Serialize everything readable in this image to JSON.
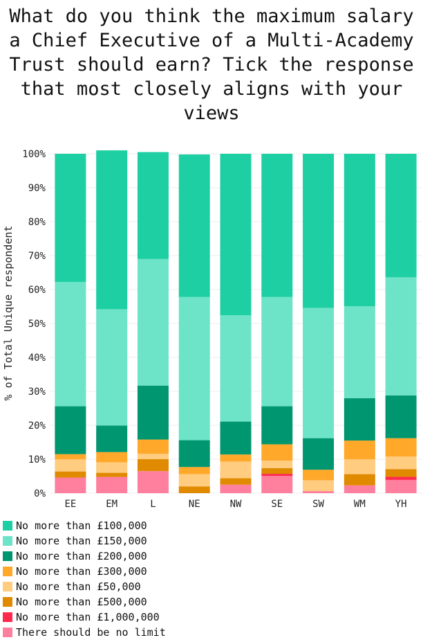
{
  "chart_data": {
    "type": "bar",
    "stacked": true,
    "title": "What do you think the maximum salary a Chief Executive of a Multi-Academy Trust should earn? Tick the response that most closely aligns with your views",
    "xlabel": "",
    "ylabel": "% of Total Unique respondent",
    "ylim": [
      0,
      100
    ],
    "yticks": [
      "0%",
      "10%",
      "20%",
      "30%",
      "40%",
      "50%",
      "60%",
      "70%",
      "80%",
      "90%",
      "100%"
    ],
    "categories": [
      "EE",
      "EM",
      "L",
      "NE",
      "NW",
      "SE",
      "SW",
      "WM",
      "YH"
    ],
    "stack_order_bottom_to_top": [
      "There should be no limit",
      "No more than £1,000,000",
      "No more than £500,000",
      "No more than £50,000",
      "No more than £300,000",
      "No more than £200,000",
      "No more than £150,000",
      "No more than £100,000"
    ],
    "series": [
      {
        "name": "No more than £100,000",
        "color": "#1ecfa4",
        "values": [
          37.8,
          46.8,
          31.5,
          42.0,
          47.6,
          42.2,
          45.4,
          44.9,
          36.4
        ]
      },
      {
        "name": "No more than £150,000",
        "color": "#6de3c7",
        "values": [
          36.6,
          34.3,
          37.3,
          42.2,
          31.3,
          32.2,
          38.4,
          27.1,
          34.8
        ]
      },
      {
        "name": "No more than £200,000",
        "color": "#009670",
        "values": [
          14.1,
          7.8,
          15.9,
          7.9,
          9.7,
          11.2,
          9.3,
          12.5,
          12.6
        ]
      },
      {
        "name": "No more than £300,000",
        "color": "#ffa82a",
        "values": [
          1.5,
          3.0,
          4.2,
          2.1,
          2.1,
          4.8,
          3.1,
          5.5,
          5.4
        ]
      },
      {
        "name": "No more than £50,000",
        "color": "#ffcc80",
        "values": [
          3.6,
          3.1,
          1.6,
          3.6,
          4.9,
          2.2,
          3.2,
          4.4,
          3.7
        ]
      },
      {
        "name": "No more than £500,000",
        "color": "#e08a00",
        "values": [
          1.8,
          1.2,
          3.5,
          2.0,
          1.9,
          1.7,
          0.0,
          3.3,
          2.3
        ]
      },
      {
        "name": "No more than £1,000,000",
        "color": "#ff2a4d",
        "values": [
          0.0,
          0.0,
          0.0,
          0.0,
          0.0,
          0.6,
          0.0,
          0.0,
          0.9
        ]
      },
      {
        "name": "There should be no limit",
        "color": "#ff7f9e",
        "values": [
          4.6,
          4.8,
          6.5,
          0.0,
          2.5,
          5.1,
          0.6,
          2.3,
          3.9
        ]
      }
    ],
    "legend_position": "bottom-left"
  }
}
